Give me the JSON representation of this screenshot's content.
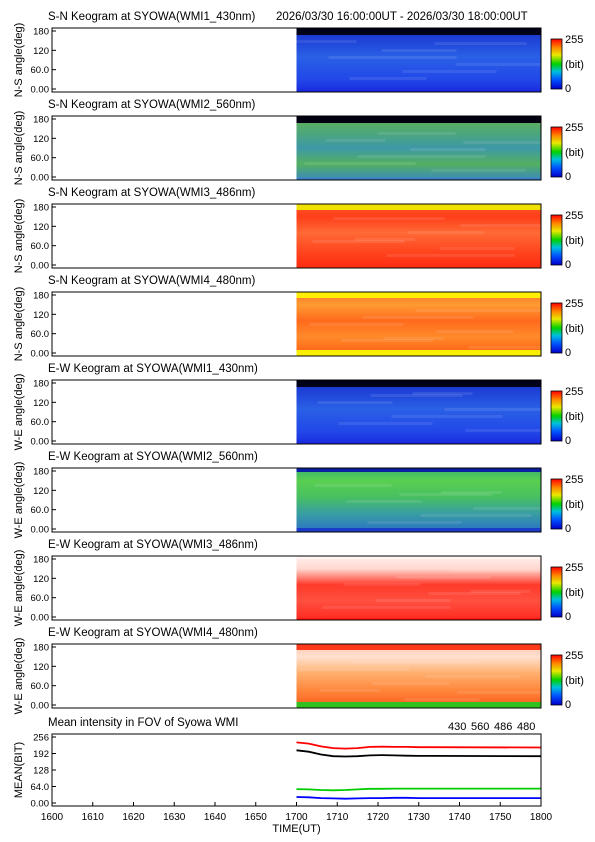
{
  "header": {
    "time_range": "2026/03/30 16:00:00UT - 2026/03/30 18:00:00UT"
  },
  "colorbar": {
    "max_label": "255",
    "unit_label": "(bit)",
    "min_label": "0"
  },
  "keogram_y_ticks": [
    "180",
    "120",
    "60.0",
    "0.00"
  ],
  "chart_data": [
    {
      "type": "heatmap",
      "title": "S-N Keogram at SYOWA(WMI1_430nm)",
      "ylabel": "N-S angle(deg)",
      "ylim": [
        0,
        180
      ],
      "palette": "blue",
      "data_x_start": 1700
    },
    {
      "type": "heatmap",
      "title": "S-N Keogram at SYOWA(WMI2_560nm)",
      "ylabel": "N-S angle(deg)",
      "ylim": [
        0,
        180
      ],
      "palette": "green",
      "data_x_start": 1700
    },
    {
      "type": "heatmap",
      "title": "S-N Keogram at SYOWA(WMI3_486nm)",
      "ylabel": "N-S angle(deg)",
      "ylim": [
        0,
        180
      ],
      "palette": "red",
      "data_x_start": 1700
    },
    {
      "type": "heatmap",
      "title": "S-N Keogram at SYOWA(WMI4_480nm)",
      "ylabel": "N-S angle(deg)",
      "ylim": [
        0,
        180
      ],
      "palette": "redyellow",
      "data_x_start": 1700
    },
    {
      "type": "heatmap",
      "title": "E-W Keogram at SYOWA(WMI1_430nm)",
      "ylabel": "W-E angle(deg)",
      "ylim": [
        0,
        180
      ],
      "palette": "blue",
      "data_x_start": 1700
    },
    {
      "type": "heatmap",
      "title": "E-W Keogram at SYOWA(WMI2_560nm)",
      "ylabel": "W-E angle(deg)",
      "ylim": [
        0,
        180
      ],
      "palette": "greenblue",
      "data_x_start": 1700
    },
    {
      "type": "heatmap",
      "title": "E-W Keogram at SYOWA(WMI3_486nm)",
      "ylabel": "W-E angle(deg)",
      "ylim": [
        0,
        180
      ],
      "palette": "whitered",
      "data_x_start": 1700
    },
    {
      "type": "heatmap",
      "title": "E-W Keogram at SYOWA(WMI4_480nm)",
      "ylabel": "W-E angle(deg)",
      "ylim": [
        0,
        180
      ],
      "palette": "whiteorange",
      "data_x_start": 1700
    },
    {
      "type": "line",
      "title": "Mean intensity in FOV of Syowa WMI",
      "xlabel": "TIME(UT)",
      "ylabel": "MEAN(BIT)",
      "xlim": [
        1600,
        1800
      ],
      "ylim": [
        0,
        256
      ],
      "x_ticks": [
        "1600",
        "1610",
        "1620",
        "1630",
        "1640",
        "1650",
        "1700",
        "1710",
        "1720",
        "1730",
        "1740",
        "1750",
        "1800"
      ],
      "y_ticks": [
        "256",
        "192",
        "128",
        "64.0",
        "0.00"
      ],
      "x": [
        1700,
        1705,
        1710,
        1715,
        1720,
        1725,
        1730,
        1735,
        1740,
        1745,
        1750,
        1755,
        1800
      ],
      "series": [
        {
          "name": "430",
          "color": "#0000ff",
          "values": [
            32,
            31,
            28,
            27,
            26,
            27,
            28,
            28,
            29,
            29,
            28,
            28,
            28
          ]
        },
        {
          "name": "560",
          "color": "#00cc00",
          "values": [
            60,
            59,
            57,
            56,
            57,
            59,
            61,
            61,
            62,
            62,
            62,
            62,
            62
          ]
        },
        {
          "name": "486",
          "color": "#ff0000",
          "values": [
            226,
            222,
            212,
            206,
            204,
            206,
            210,
            211,
            210,
            210,
            209,
            209,
            208
          ]
        },
        {
          "name": "480",
          "color": "#000000",
          "values": [
            198,
            193,
            183,
            177,
            176,
            177,
            180,
            181,
            180,
            179,
            178,
            178,
            177
          ]
        }
      ]
    }
  ]
}
